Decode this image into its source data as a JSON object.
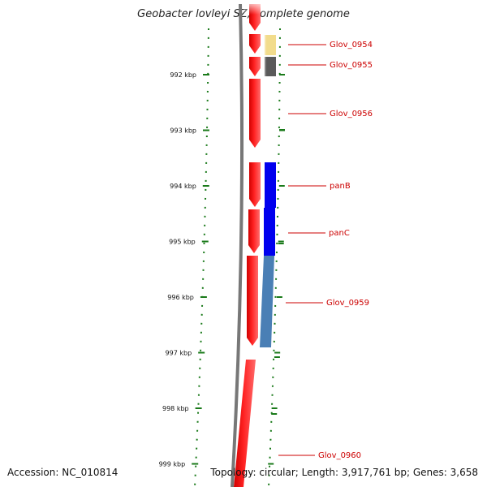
{
  "title": "Geobacter lovleyi SZ, complete genome",
  "footer": {
    "accession": "Accession: NC_010814",
    "summary": "Topology: circular; Length: 3,917,761 bp; Genes: 3,658"
  },
  "colors": {
    "backbone": "#7a7a7a",
    "tick": "#1a7a1a",
    "label_text": "#cc0000",
    "label_line": "#cc0000"
  },
  "ruler": {
    "ticks": [
      {
        "label": "992 kbp",
        "kbp": 992
      },
      {
        "label": "993 kbp",
        "kbp": 993
      },
      {
        "label": "994 kbp",
        "kbp": 994
      },
      {
        "label": "995 kbp",
        "kbp": 995
      },
      {
        "label": "996 kbp",
        "kbp": 996
      },
      {
        "label": "997 kbp",
        "kbp": 997
      },
      {
        "label": "998 kbp",
        "kbp": 998
      },
      {
        "label": "999 kbp",
        "kbp": 999
      }
    ]
  },
  "genes": [
    {
      "name": "Glov_0954",
      "color": "#f2dc8c",
      "track": "outer"
    },
    {
      "name": "Glov_0955",
      "color": "#5a5a5a",
      "track": "outer"
    },
    {
      "name": "Glov_0956",
      "color": "#ff0000",
      "track": "inner"
    },
    {
      "name": "panB",
      "color": "#0000ee",
      "track": "outer"
    },
    {
      "name": "panC",
      "color": "#0000ee",
      "track": "outer"
    },
    {
      "name": "Glov_0959",
      "color": "#4a7fb5",
      "track": "outer"
    },
    {
      "name": "Glov_0960",
      "color": "#ff0000",
      "track": "inner"
    }
  ]
}
